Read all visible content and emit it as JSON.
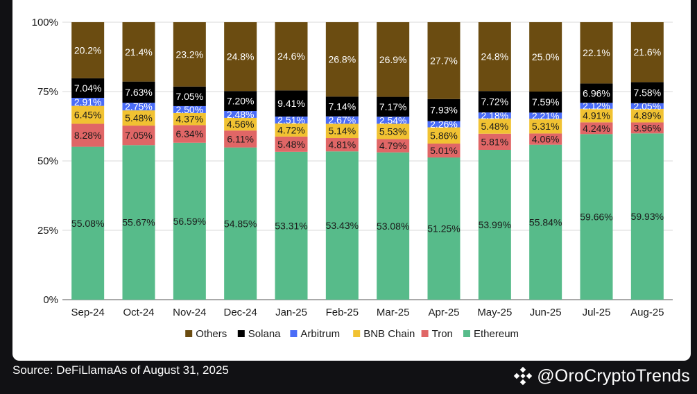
{
  "footer": {
    "source_text": "Source: DeFiLlamaAs of August 31, 2025",
    "handle": "@OroCryptoTrends",
    "logo_icon": "binance-logo-icon"
  },
  "chart_data": {
    "type": "bar",
    "stacked": true,
    "normalized": true,
    "title": "",
    "xlabel": "",
    "ylabel": "",
    "ylim": [
      0,
      100
    ],
    "yticks": [
      "0%",
      "25%",
      "50%",
      "75%",
      "100%"
    ],
    "ytick_values": [
      0,
      25,
      50,
      75,
      100
    ],
    "grid": true,
    "legend_position": "bottom",
    "categories": [
      "Sep-24",
      "Oct-24",
      "Nov-24",
      "Dec-24",
      "Jan-25",
      "Feb-25",
      "Mar-25",
      "Apr-25",
      "May-25",
      "Jun-25",
      "Jul-25",
      "Aug-25"
    ],
    "series": [
      {
        "name": "Ethereum",
        "color": "#57bb8a",
        "label_color": "#1a1a1a",
        "values": [
          55.08,
          55.67,
          56.59,
          54.85,
          53.31,
          53.43,
          53.08,
          51.25,
          53.99,
          55.84,
          59.66,
          59.93
        ],
        "labels": [
          "55.08%",
          "55.67%",
          "56.59%",
          "54.85%",
          "53.31%",
          "53.43%",
          "53.08%",
          "51.25%",
          "53.99%",
          "55.84%",
          "59.66%",
          "59.93%"
        ]
      },
      {
        "name": "Tron",
        "color": "#e06666",
        "label_color": "#1a1a1a",
        "values": [
          8.28,
          7.05,
          6.34,
          6.11,
          5.48,
          4.81,
          4.79,
          5.01,
          5.81,
          4.06,
          4.24,
          3.96
        ],
        "labels": [
          "8.28%",
          "7.05%",
          "6.34%",
          "6.11%",
          "5.48%",
          "4.81%",
          "4.79%",
          "5.01%",
          "5.81%",
          "4.06%",
          "4.24%",
          "3.96%"
        ]
      },
      {
        "name": "BNB Chain",
        "color": "#f1c232",
        "label_color": "#1a1a1a",
        "values": [
          6.45,
          5.48,
          4.37,
          4.56,
          4.72,
          5.14,
          5.53,
          5.86,
          5.48,
          5.31,
          4.91,
          4.89
        ],
        "labels": [
          "6.45%",
          "5.48%",
          "4.37%",
          "4.56%",
          "4.72%",
          "5.14%",
          "5.53%",
          "5.86%",
          "5.48%",
          "5.31%",
          "4.91%",
          "4.89%"
        ]
      },
      {
        "name": "Arbitrum",
        "color": "#4a6cf7",
        "label_color": "#ffffff",
        "values": [
          2.91,
          2.75,
          2.5,
          2.48,
          2.51,
          2.67,
          2.54,
          2.26,
          2.18,
          2.21,
          2.12,
          2.05
        ],
        "labels": [
          "2.91%",
          "2.75%",
          "2.50%",
          "2.48%",
          "2.51%",
          "2.67%",
          "2.54%",
          "2.26%",
          "2.18%",
          "2.21%",
          "2.12%",
          "2.05%"
        ]
      },
      {
        "name": "Solana",
        "color": "#000000",
        "label_color": "#ffffff",
        "values": [
          7.04,
          7.63,
          7.05,
          7.2,
          9.41,
          7.14,
          7.17,
          7.93,
          7.72,
          7.59,
          6.96,
          7.58
        ],
        "labels": [
          "7.04%",
          "7.63%",
          "7.05%",
          "7.20%",
          "9.41%",
          "7.14%",
          "7.17%",
          "7.93%",
          "7.72%",
          "7.59%",
          "6.96%",
          "7.58%"
        ]
      },
      {
        "name": "Others",
        "color": "#6b4c11",
        "label_color": "#ffffff",
        "values": [
          20.2,
          21.4,
          23.2,
          24.8,
          24.6,
          26.8,
          26.9,
          27.7,
          24.8,
          25.0,
          22.1,
          21.6
        ],
        "labels": [
          "20.2%",
          "21.4%",
          "23.2%",
          "24.8%",
          "24.6%",
          "26.8%",
          "26.9%",
          "27.7%",
          "24.8%",
          "25.0%",
          "22.1%",
          "21.6%"
        ]
      }
    ],
    "legend_order": [
      "Others",
      "Solana",
      "Arbitrum",
      "BNB Chain",
      "Tron",
      "Ethereum"
    ]
  }
}
